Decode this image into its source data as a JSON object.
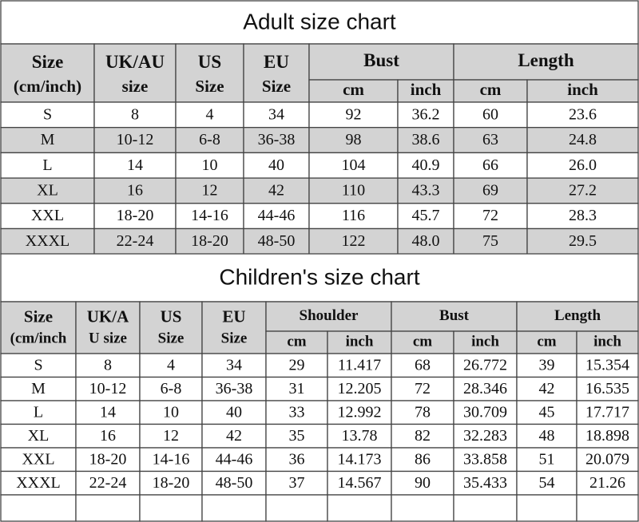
{
  "adult": {
    "title": "Adult  size chart",
    "header_top": [
      "Size",
      "UK/AU",
      "US",
      "EU",
      "Bust",
      "Length"
    ],
    "header_bottom": [
      "(cm/inch)",
      "size",
      "Size",
      "Size",
      "cm",
      "inch",
      "cm",
      "inch"
    ],
    "rows": [
      [
        "S",
        "8",
        "4",
        "34",
        "92",
        "36.2",
        "60",
        "23.6"
      ],
      [
        "M",
        "10-12",
        "6-8",
        "36-38",
        "98",
        "38.6",
        "63",
        "24.8"
      ],
      [
        "L",
        "14",
        "10",
        "40",
        "104",
        "40.9",
        "66",
        "26.0"
      ],
      [
        "XL",
        "16",
        "12",
        "42",
        "110",
        "43.3",
        "69",
        "27.2"
      ],
      [
        "XXL",
        "18-20",
        "14-16",
        "44-46",
        "116",
        "45.7",
        "72",
        "28.3"
      ],
      [
        "XXXL",
        "22-24",
        "18-20",
        "48-50",
        "122",
        "48.0",
        "75",
        "29.5"
      ]
    ]
  },
  "children": {
    "title": "Children's size chart",
    "header_top": [
      "Size",
      "UK/A",
      "US",
      "EU",
      "Shoulder",
      "Bust",
      "Length"
    ],
    "header_bottom": [
      "(cm/inch",
      "U size",
      "Size",
      "Size",
      "cm",
      "inch",
      "cm",
      "inch",
      "cm",
      "inch"
    ],
    "rows": [
      [
        "S",
        "8",
        "4",
        "34",
        "29",
        "11.417",
        "68",
        "26.772",
        "39",
        "15.354"
      ],
      [
        "M",
        "10-12",
        "6-8",
        "36-38",
        "31",
        "12.205",
        "72",
        "28.346",
        "42",
        "16.535"
      ],
      [
        "L",
        "14",
        "10",
        "40",
        "33",
        "12.992",
        "78",
        "30.709",
        "45",
        "17.717"
      ],
      [
        "XL",
        "16",
        "12",
        "42",
        "35",
        "13.78",
        "82",
        "32.283",
        "48",
        "18.898"
      ],
      [
        "XXL",
        "18-20",
        "14-16",
        "44-46",
        "36",
        "14.173",
        "86",
        "33.858",
        "51",
        "20.079"
      ],
      [
        "XXXL",
        "22-24",
        "18-20",
        "48-50",
        "37",
        "14.567",
        "90",
        "35.433",
        "54",
        "21.26"
      ]
    ]
  }
}
